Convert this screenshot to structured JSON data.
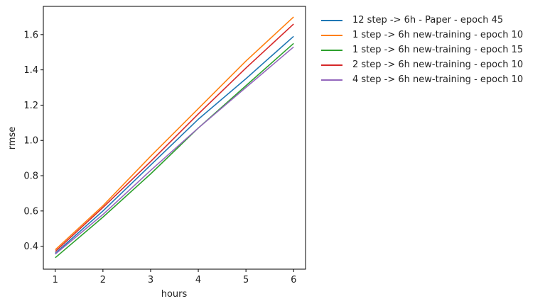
{
  "chart_data": {
    "type": "line",
    "xlabel": "hours",
    "ylabel": "rmse",
    "x": [
      1,
      2,
      3,
      4,
      5,
      6
    ],
    "xlim": [
      0.75,
      6.25
    ],
    "ylim": [
      0.27,
      1.76
    ],
    "xticks": [
      1,
      2,
      3,
      4,
      5,
      6
    ],
    "yticks": [
      "0.4",
      "0.6",
      "0.8",
      "1.0",
      "1.2",
      "1.4",
      "1.6"
    ],
    "grid": false,
    "legend_placement": "outside-top-right",
    "series": [
      {
        "name": "12 step -> 6h - Paper - epoch 45",
        "color": "#1f77b4",
        "values": [
          0.36,
          0.6,
          0.86,
          1.12,
          1.35,
          1.59
        ]
      },
      {
        "name": "1 step -> 6h new-training - epoch 10",
        "color": "#ff7f0e",
        "values": [
          0.38,
          0.63,
          0.91,
          1.18,
          1.45,
          1.7
        ]
      },
      {
        "name": "1 step -> 6h new-training - epoch 15",
        "color": "#2ca02c",
        "values": [
          0.335,
          0.565,
          0.81,
          1.07,
          1.31,
          1.55
        ]
      },
      {
        "name": "2 step -> 6h new-training - epoch 10",
        "color": "#d62728",
        "values": [
          0.37,
          0.62,
          0.88,
          1.15,
          1.41,
          1.66
        ]
      },
      {
        "name": "4 step -> 6h new-training - epoch 10",
        "color": "#9467bd",
        "values": [
          0.355,
          0.58,
          0.83,
          1.07,
          1.3,
          1.53
        ]
      }
    ]
  }
}
